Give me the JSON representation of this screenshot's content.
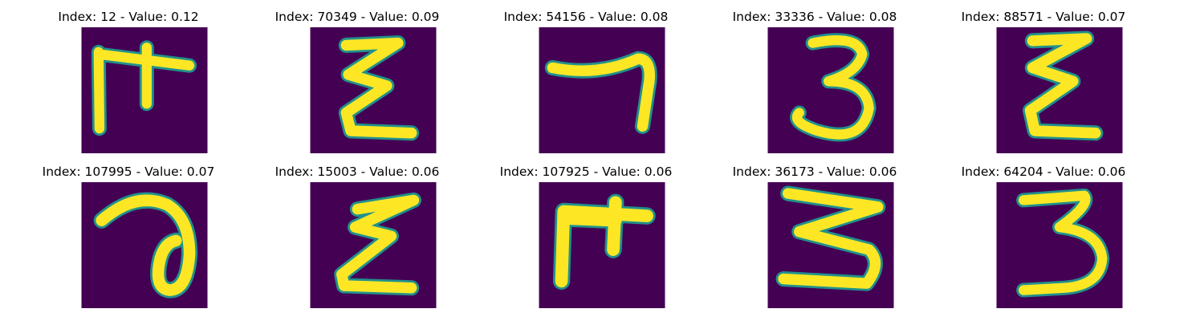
{
  "colors": {
    "background": "#440154",
    "glyph": "#fde725",
    "edge": "#21918c"
  },
  "panels": [
    {
      "title": "Index: 12 - Value: 0.12"
    },
    {
      "title": "Index: 70349 - Value: 0.09"
    },
    {
      "title": "Index: 54156 - Value: 0.08"
    },
    {
      "title": "Index: 33336 - Value: 0.08"
    },
    {
      "title": "Index: 88571 - Value: 0.07"
    },
    {
      "title": "Index: 107995 - Value: 0.07"
    },
    {
      "title": "Index: 15003 - Value: 0.06"
    },
    {
      "title": "Index: 107925 - Value: 0.06"
    },
    {
      "title": "Index: 36173 - Value: 0.06"
    },
    {
      "title": "Index: 64204 - Value: 0.06"
    }
  ]
}
